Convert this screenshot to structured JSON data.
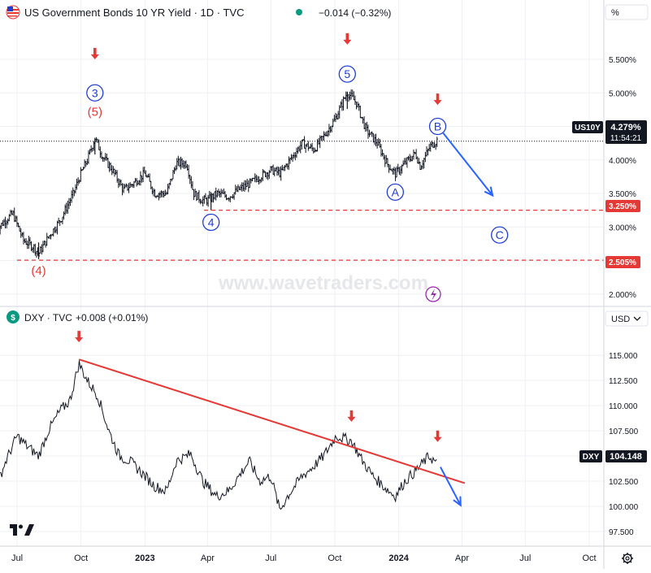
{
  "colors": {
    "bull_red": "#e53935",
    "wave_blue": "#1e3fd1",
    "arrow_blue": "#2962ff",
    "tag_bg": "#131722",
    "grid": "#eef0f3",
    "text": "#131722",
    "muted": "#787b86",
    "watermark": "#e6e7ea"
  },
  "icons": {
    "flag": "us-flag-icon",
    "dxy_logo": "dollar-circle-icon",
    "lightning": "lightning-icon",
    "settings": "gear-icon",
    "brand": "tradingview-logo-icon"
  },
  "watermark": "www.wavetraders.com",
  "time_axis": {
    "labels": [
      "Jul",
      "Oct",
      "2023",
      "Apr",
      "Jul",
      "Oct",
      "2024",
      "Apr",
      "Jul",
      "Oct"
    ],
    "bold": [
      "2023",
      "2024"
    ],
    "dates": [
      "2022-07-01",
      "2022-10-01",
      "2023-01-01",
      "2023-04-01",
      "2023-07-01",
      "2023-10-01",
      "2024-01-01",
      "2024-04-01",
      "2024-07-01",
      "2024-10-01"
    ]
  },
  "top": {
    "title": "US Government Bonds 10 YR Yield · 1D · TVC",
    "change": "−0.014 (−0.32%)",
    "unit_label": "%",
    "price_tag": "4.279%",
    "symbol_tag": "US10Y",
    "countdown": "11:54:21",
    "level_tags": [
      "3.250%",
      "2.505%"
    ]
  },
  "bottom": {
    "title": "DXY · TVC",
    "change": "+0.008 (+0.01%)",
    "unit_label": "USD",
    "price_tag": "104.148",
    "symbol_tag": "DXY"
  },
  "chart_data": [
    {
      "type": "line",
      "ohlc": true,
      "series": [
        {
          "name": "US10Y",
          "x": [
            "2022-06-01",
            "2022-06-14",
            "2022-06-25",
            "2022-07-10",
            "2022-07-25",
            "2022-08-01",
            "2022-08-15",
            "2022-09-01",
            "2022-09-20",
            "2022-10-01",
            "2022-10-10",
            "2022-10-21",
            "2022-11-01",
            "2022-11-15",
            "2022-12-01",
            "2022-12-15",
            "2023-01-01",
            "2023-01-15",
            "2023-02-01",
            "2023-02-15",
            "2023-03-02",
            "2023-03-12",
            "2023-03-24",
            "2023-04-01",
            "2023-04-15",
            "2023-05-01",
            "2023-05-15",
            "2023-06-01",
            "2023-06-15",
            "2023-07-01",
            "2023-07-15",
            "2023-08-01",
            "2023-08-15",
            "2023-09-01",
            "2023-09-15",
            "2023-10-01",
            "2023-10-19",
            "2023-11-01",
            "2023-11-15",
            "2023-12-01",
            "2023-12-15",
            "2023-12-27",
            "2024-01-10",
            "2024-01-25",
            "2024-02-01",
            "2024-02-15",
            "2024-02-26"
          ],
          "y": [
            2.95,
            3.1,
            3.2,
            2.8,
            2.7,
            2.6,
            2.85,
            3.1,
            3.5,
            3.8,
            4.0,
            4.33,
            4.05,
            3.85,
            3.55,
            3.65,
            3.8,
            3.5,
            3.5,
            3.95,
            3.95,
            3.5,
            3.4,
            3.4,
            3.5,
            3.45,
            3.55,
            3.65,
            3.75,
            3.85,
            3.8,
            4.05,
            4.25,
            4.15,
            4.35,
            4.6,
            5.01,
            4.85,
            4.45,
            4.25,
            3.95,
            3.79,
            3.95,
            4.1,
            3.9,
            4.2,
            4.3
          ],
          "high_points": [
            [
              "2022-10-21",
              4.33
            ],
            [
              "2023-10-19",
              5.01
            ]
          ],
          "low_points": [
            [
              "2022-08-01",
              2.52
            ],
            [
              "2023-04-06",
              3.25
            ]
          ]
        }
      ],
      "ylim": [
        1.9,
        5.9
      ],
      "yticks": [
        2.0,
        2.5,
        3.0,
        3.5,
        4.0,
        4.5,
        5.0,
        5.5
      ],
      "ytick_labels": [
        "2.000%",
        "2.500%",
        "3.000%",
        "3.500%",
        "4.000%",
        "4.500%",
        "5.000%",
        "5.500%"
      ],
      "current": 4.279,
      "levels": [
        3.25,
        2.505
      ],
      "wave_labels": [
        {
          "text": "3",
          "x": "2022-10-21",
          "y": 5.0,
          "style": "circle"
        },
        {
          "text": "(5)",
          "x": "2022-10-21",
          "y": 4.72,
          "style": "paren"
        },
        {
          "text": "(4)",
          "x": "2022-08-01",
          "y": 2.35,
          "style": "paren"
        },
        {
          "text": "4",
          "x": "2023-04-06",
          "y": 3.07,
          "style": "circle"
        },
        {
          "text": "5",
          "x": "2023-10-19",
          "y": 5.28,
          "style": "circle"
        },
        {
          "text": "A",
          "x": "2023-12-27",
          "y": 3.52,
          "style": "circle"
        },
        {
          "text": "B",
          "x": "2024-02-26",
          "y": 4.5,
          "style": "circle"
        },
        {
          "text": "C",
          "x": "2024-05-25",
          "y": 2.88,
          "style": "circle"
        }
      ],
      "markers": [
        {
          "x": "2022-10-21",
          "y": 5.5
        },
        {
          "x": "2023-10-19",
          "y": 5.72
        },
        {
          "x": "2024-02-26",
          "y": 4.82
        }
      ],
      "projection": [
        [
          "2024-03-05",
          4.4
        ],
        [
          "2024-05-15",
          3.47
        ]
      ]
    },
    {
      "type": "line",
      "series": [
        {
          "name": "DXY",
          "x": [
            "2022-06-01",
            "2022-06-15",
            "2022-07-01",
            "2022-07-15",
            "2022-08-01",
            "2022-08-15",
            "2022-09-01",
            "2022-09-15",
            "2022-09-28",
            "2022-10-10",
            "2022-10-25",
            "2022-11-10",
            "2022-11-25",
            "2022-12-10",
            "2022-12-25",
            "2023-01-15",
            "2023-02-01",
            "2023-02-15",
            "2023-03-08",
            "2023-03-25",
            "2023-04-14",
            "2023-05-01",
            "2023-05-31",
            "2023-06-15",
            "2023-07-01",
            "2023-07-14",
            "2023-07-25",
            "2023-08-15",
            "2023-09-01",
            "2023-09-15",
            "2023-10-03",
            "2023-10-25",
            "2023-11-10",
            "2023-11-25",
            "2023-12-10",
            "2023-12-27",
            "2024-01-10",
            "2024-01-25",
            "2024-02-14",
            "2024-02-26"
          ],
          "y": [
            102.0,
            104.5,
            107.0,
            106.0,
            105.0,
            107.5,
            109.5,
            110.5,
            114.2,
            112.5,
            111.0,
            107.5,
            105.0,
            104.5,
            103.5,
            102.0,
            101.5,
            104.5,
            105.2,
            102.5,
            101.0,
            101.5,
            104.5,
            102.5,
            103.0,
            99.6,
            101.0,
            103.0,
            104.0,
            105.0,
            107.0,
            106.5,
            104.5,
            103.0,
            102.0,
            101.0,
            102.5,
            103.5,
            105.0,
            104.15
          ]
        }
      ],
      "ylim": [
        96.2,
        117.6
      ],
      "yticks": [
        97.5,
        100.0,
        102.5,
        105.0,
        107.5,
        110.0,
        112.5,
        115.0
      ],
      "ytick_labels": [
        "97.500",
        "100.000",
        "102.500",
        "105.000",
        "107.500",
        "110.000",
        "112.500",
        "115.000"
      ],
      "current": 104.148,
      "trendline": [
        [
          "2022-09-28",
          114.6
        ],
        [
          "2024-04-05",
          102.3
        ]
      ],
      "markers": [
        {
          "x": "2022-09-28",
          "y": 116.3
        },
        {
          "x": "2023-10-25",
          "y": 108.4
        },
        {
          "x": "2024-02-26",
          "y": 106.4
        }
      ],
      "projection": [
        [
          "2024-03-01",
          103.9
        ],
        [
          "2024-03-30",
          100.1
        ]
      ]
    }
  ]
}
